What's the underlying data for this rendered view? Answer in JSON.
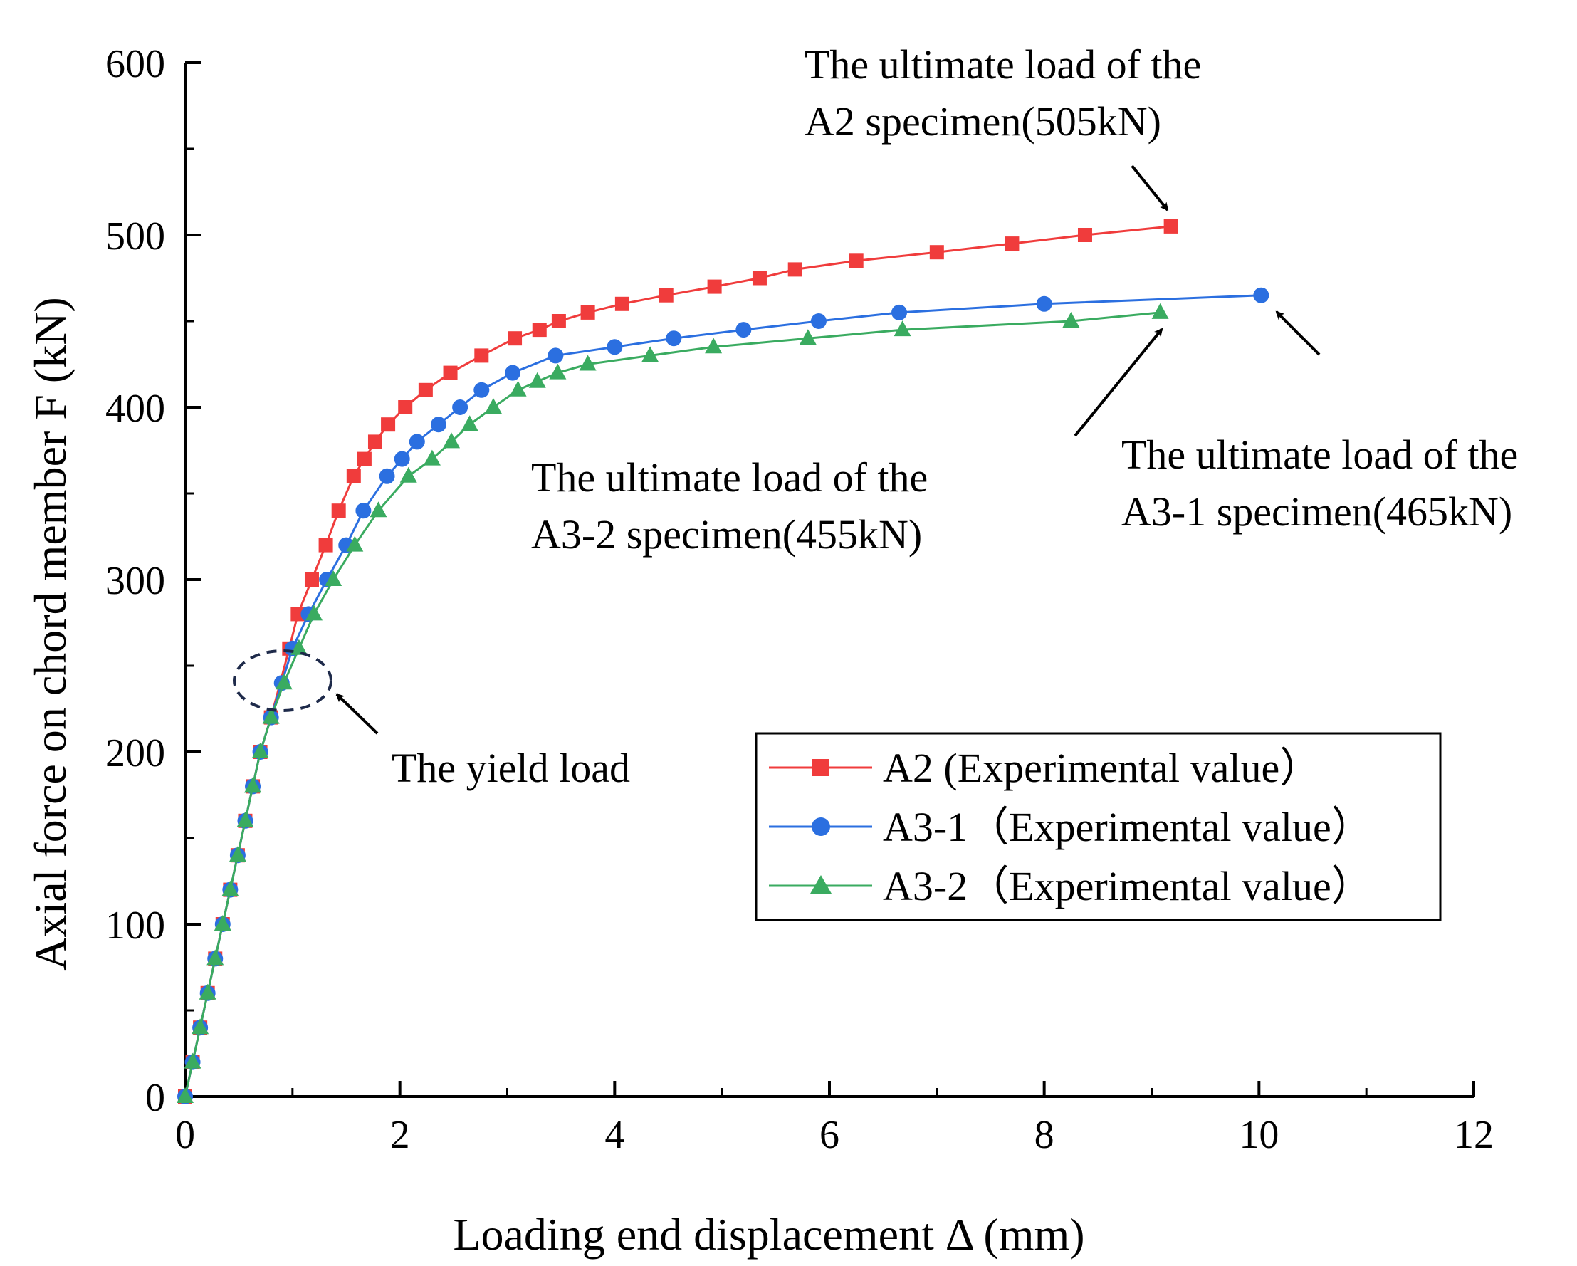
{
  "chart_data": {
    "type": "line",
    "xlabel": "Loading end displacement  Δ (mm)",
    "ylabel": "Axial force on chord member  F (kN)",
    "xlim": [
      0,
      12
    ],
    "ylim": [
      0,
      600
    ],
    "xticks": [
      "0",
      "2",
      "4",
      "6",
      "8",
      "10",
      "12"
    ],
    "yticks": [
      "0",
      "100",
      "200",
      "300",
      "400",
      "500",
      "600"
    ],
    "legend_position": "lower-right",
    "series": [
      {
        "name": "A2 (Experimental value）",
        "color": "#f03c3c",
        "marker": "square",
        "x": [
          0.0,
          0.07,
          0.14,
          0.21,
          0.28,
          0.35,
          0.42,
          0.49,
          0.56,
          0.63,
          0.7,
          0.8,
          0.97,
          1.05,
          1.18,
          1.31,
          1.43,
          1.57,
          1.67,
          1.77,
          1.89,
          2.05,
          2.24,
          2.47,
          2.76,
          3.07,
          3.3,
          3.48,
          3.75,
          4.07,
          4.48,
          4.93,
          5.35,
          5.68,
          6.25,
          7.0,
          7.7,
          8.38,
          9.18
        ],
        "values": [
          0,
          20,
          40,
          60,
          80,
          100,
          120,
          140,
          160,
          180,
          200,
          220,
          260,
          280,
          300,
          320,
          340,
          360,
          370,
          380,
          390,
          400,
          410,
          420,
          430,
          440,
          445,
          450,
          455,
          460,
          465,
          470,
          475,
          480,
          485,
          490,
          495,
          500,
          505
        ]
      },
      {
        "name": "A3-1（Experimental value）",
        "color": "#2b6fe0",
        "marker": "circle",
        "x": [
          0.0,
          0.07,
          0.14,
          0.21,
          0.28,
          0.35,
          0.42,
          0.49,
          0.56,
          0.63,
          0.7,
          0.8,
          0.9,
          1.0,
          1.15,
          1.32,
          1.5,
          1.66,
          1.88,
          2.02,
          2.16,
          2.36,
          2.56,
          2.76,
          3.05,
          3.45,
          4.0,
          4.55,
          5.2,
          5.9,
          6.65,
          8.0,
          10.02
        ],
        "values": [
          0,
          20,
          40,
          60,
          80,
          100,
          120,
          140,
          160,
          180,
          200,
          220,
          240,
          260,
          280,
          300,
          320,
          340,
          360,
          370,
          380,
          390,
          400,
          410,
          420,
          430,
          435,
          440,
          445,
          450,
          455,
          460,
          465
        ]
      },
      {
        "name": "A3-2（Experimental value）",
        "color": "#3aab60",
        "marker": "triangle",
        "x": [
          0.0,
          0.07,
          0.14,
          0.21,
          0.28,
          0.35,
          0.42,
          0.49,
          0.56,
          0.63,
          0.7,
          0.8,
          0.92,
          1.06,
          1.2,
          1.38,
          1.58,
          1.8,
          2.08,
          2.3,
          2.48,
          2.65,
          2.87,
          3.1,
          3.28,
          3.47,
          3.75,
          4.33,
          4.92,
          5.8,
          6.68,
          8.25,
          9.08
        ],
        "values": [
          0,
          20,
          40,
          60,
          80,
          100,
          120,
          140,
          160,
          180,
          200,
          220,
          240,
          260,
          280,
          300,
          320,
          340,
          360,
          370,
          380,
          390,
          400,
          410,
          415,
          420,
          425,
          430,
          435,
          440,
          445,
          450,
          455
        ]
      }
    ],
    "annotations": {
      "a2_line1": "The ultimate load of the",
      "a2_line2": "A2 specimen(505kN)",
      "a31_line1": "The ultimate load of the",
      "a31_line2": "A3-1 specimen(465kN)",
      "a32_line1": "The ultimate load of the",
      "a32_line2": "A3-2 specimen(455kN)",
      "yield": "The yield load"
    }
  }
}
